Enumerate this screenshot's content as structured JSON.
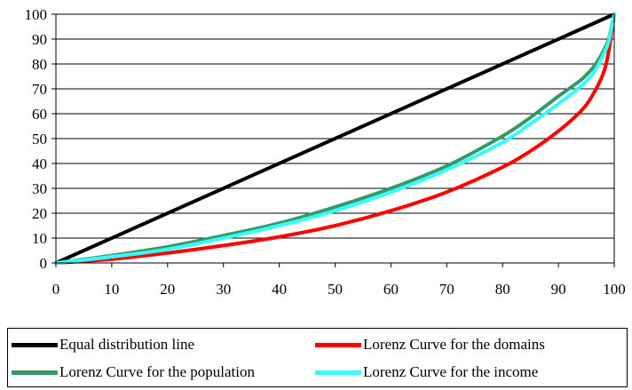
{
  "chart_data": {
    "type": "line",
    "title": "",
    "xlabel": "",
    "ylabel": "",
    "xlim": [
      0,
      100
    ],
    "ylim": [
      0,
      100
    ],
    "xticks": [
      0,
      10,
      20,
      30,
      40,
      50,
      60,
      70,
      80,
      90,
      100
    ],
    "yticks": [
      0,
      10,
      20,
      30,
      40,
      50,
      60,
      70,
      80,
      90,
      100
    ],
    "grid": "horizontal",
    "legend_position": "bottom",
    "series": [
      {
        "name": "Equal distribution line",
        "color": "#000000",
        "x": [
          0,
          100
        ],
        "y": [
          0,
          100
        ]
      },
      {
        "name": "Lorenz Curve for the domains",
        "color": "#ff0000",
        "x": [
          0,
          10,
          20,
          30,
          40,
          50,
          60,
          70,
          80,
          85,
          90,
          94,
          96,
          98,
          99,
          100
        ],
        "y": [
          0,
          1.5,
          4,
          7,
          10.5,
          15,
          21,
          28.5,
          38.5,
          45,
          53,
          61,
          67,
          76,
          85,
          100
        ]
      },
      {
        "name": "Lorenz Curve for the population",
        "color": "#339966",
        "x": [
          0,
          10,
          20,
          30,
          40,
          50,
          60,
          70,
          80,
          85,
          90,
          94,
          96,
          97,
          98,
          99,
          100
        ],
        "y": [
          0,
          3,
          6.5,
          11,
          16,
          22.5,
          30,
          39,
          51,
          58.5,
          67,
          73.5,
          78,
          81,
          85,
          90,
          100
        ]
      },
      {
        "name": "Lorenz Curve for the  income",
        "color": "#33ffff",
        "x": [
          0,
          10,
          20,
          30,
          40,
          50,
          60,
          70,
          80,
          85,
          90,
          94,
          96,
          97,
          98,
          99,
          100
        ],
        "y": [
          0,
          2.5,
          5.5,
          10,
          15,
          21,
          28.5,
          37.5,
          48.5,
          56,
          64,
          71,
          75.5,
          79,
          83.5,
          89,
          100
        ]
      }
    ]
  }
}
